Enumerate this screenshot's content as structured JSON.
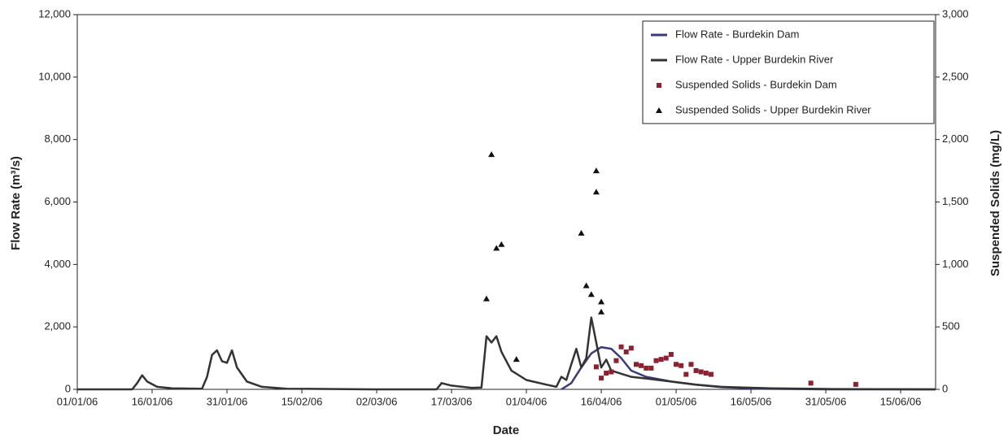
{
  "chart_data": {
    "type": "line",
    "x_label": "Date",
    "y_label": "Flow Rate (m³/s)",
    "y2_label": "Suspended Solids (mg/L)",
    "xlim": [
      "01/01/06",
      "22/06/06"
    ],
    "xticks": [
      "01/01/06",
      "16/01/06",
      "31/01/06",
      "15/02/06",
      "02/03/06",
      "17/03/06",
      "01/04/06",
      "16/04/06",
      "01/05/06",
      "16/05/06",
      "31/05/06",
      "15/06/06"
    ],
    "ylim": [
      0,
      12000
    ],
    "yticks": [
      0,
      {
        "value": 2000,
        "label": "2,000"
      },
      {
        "value": 4000,
        "label": "4,000"
      },
      {
        "value": 6000,
        "label": "6,000"
      },
      {
        "value": 8000,
        "label": "8,000"
      },
      {
        "value": 10000,
        "label": "10,000"
      },
      {
        "value": 12000,
        "label": "12,000"
      }
    ],
    "y2lim": [
      0,
      3000
    ],
    "y2ticks": [
      0,
      500,
      {
        "value": 1000,
        "label": "1,000"
      },
      {
        "value": 1500,
        "label": "1,500"
      },
      {
        "value": 2000,
        "label": "2,000"
      },
      {
        "value": 2500,
        "label": "2,500"
      },
      {
        "value": 3000,
        "label": "3,000"
      }
    ],
    "legend": "top-right",
    "series": [
      {
        "name": "Flow Rate - Burdekin Dam",
        "type": "line",
        "color": "#3b3b7a",
        "x": [
          "08/04/06",
          "10/04/06",
          "12/04/06",
          "14/04/06",
          "16/04/06",
          "18/04/06",
          "20/04/06",
          "22/04/06",
          "25/04/06",
          "30/04/06",
          "05/05/06",
          "10/05/06",
          "18/05/06",
          "01/06/06",
          "22/06/06"
        ],
        "values": [
          0,
          200,
          700,
          1150,
          1350,
          1300,
          1000,
          600,
          400,
          250,
          150,
          70,
          20,
          0,
          0
        ]
      },
      {
        "name": "Flow Rate - Upper Burdekin River",
        "type": "line",
        "color": "#333333",
        "x": [
          "01/01/06",
          "12/01/06",
          "13/01/06",
          "14/01/06",
          "15/01/06",
          "17/01/06",
          "20/01/06",
          "26/01/06",
          "27/01/06",
          "28/01/06",
          "29/01/06",
          "30/01/06",
          "31/01/06",
          "01/02/06",
          "02/02/06",
          "04/02/06",
          "07/02/06",
          "12/02/06",
          "01/03/06",
          "14/03/06",
          "15/03/06",
          "17/03/06",
          "21/03/06",
          "23/03/06",
          "24/03/06",
          "25/03/06",
          "26/03/06",
          "27/03/06",
          "29/03/06",
          "01/04/06",
          "05/04/06",
          "07/04/06",
          "08/04/06",
          "09/04/06",
          "10/04/06",
          "11/04/06",
          "12/04/06",
          "13/04/06",
          "14/04/06",
          "15/04/06",
          "16/04/06",
          "17/04/06",
          "18/04/06",
          "20/04/06",
          "22/04/06",
          "25/04/06",
          "30/04/06",
          "05/05/06",
          "10/05/06",
          "20/05/06",
          "01/06/06",
          "22/06/06"
        ],
        "values": [
          0,
          0,
          200,
          450,
          250,
          80,
          30,
          20,
          400,
          1100,
          1250,
          900,
          850,
          1250,
          700,
          250,
          80,
          20,
          0,
          0,
          200,
          120,
          50,
          60,
          1700,
          1500,
          1700,
          1200,
          600,
          300,
          150,
          80,
          400,
          300,
          800,
          1300,
          700,
          1000,
          2300,
          1500,
          700,
          950,
          600,
          500,
          400,
          350,
          250,
          150,
          80,
          30,
          10,
          0
        ]
      },
      {
        "name": "Suspended Solids - Burdekin Dam",
        "type": "scatter",
        "marker": "square",
        "color": "#8b2232",
        "axis": "y2",
        "x": [
          "15/04/06",
          "16/04/06",
          "17/04/06",
          "18/04/06",
          "19/04/06",
          "20/04/06",
          "21/04/06",
          "22/04/06",
          "23/04/06",
          "24/04/06",
          "25/04/06",
          "26/04/06",
          "27/04/06",
          "28/04/06",
          "29/04/06",
          "30/04/06",
          "01/05/06",
          "02/05/06",
          "03/05/06",
          "04/05/06",
          "05/05/06",
          "06/05/06",
          "07/05/06",
          "08/05/06",
          "28/05/06",
          "06/06/06"
        ],
        "values": [
          180,
          90,
          130,
          140,
          230,
          340,
          300,
          330,
          200,
          190,
          170,
          170,
          230,
          240,
          250,
          280,
          200,
          190,
          120,
          200,
          150,
          140,
          130,
          120,
          50,
          40
        ]
      },
      {
        "name": "Suspended Solids - Upper Burdekin River",
        "type": "scatter",
        "marker": "triangle",
        "color": "#111111",
        "axis": "y2",
        "x": [
          "24/03/06",
          "25/03/06",
          "26/03/06",
          "27/03/06",
          "30/03/06",
          "12/04/06",
          "13/04/06",
          "14/04/06",
          "15/04/06",
          "15/04/06",
          "16/04/06",
          "16/04/06"
        ],
        "values": [
          725,
          1880,
          1130,
          1160,
          240,
          1250,
          830,
          760,
          1750,
          1580,
          700,
          620
        ]
      }
    ]
  }
}
